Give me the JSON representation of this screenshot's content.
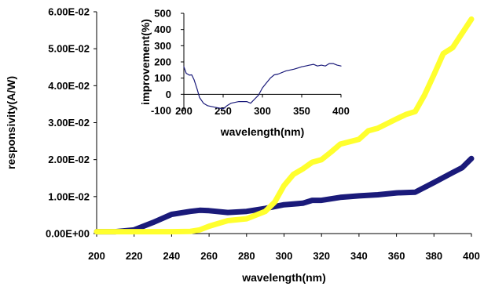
{
  "chart_data": [
    {
      "type": "line",
      "xlabel": "wavelength(nm)",
      "ylabel": "responsivity(A/W)",
      "xlim": [
        200,
        400
      ],
      "ylim": [
        0,
        0.06
      ],
      "x_ticks": [
        "200",
        "220",
        "240",
        "260",
        "280",
        "300",
        "320",
        "340",
        "360",
        "380",
        "400"
      ],
      "y_ticks": [
        "0.00E+00",
        "1.00E-02",
        "2.00E-02",
        "3.00E-02",
        "4.00E-02",
        "5.00E-02",
        "6.00E-02"
      ],
      "grid": false,
      "legend": "none",
      "series": [
        {
          "color": "#1a1a7a",
          "points": [
            [
              200,
              0.0005
            ],
            [
              210,
              0.0005
            ],
            [
              220,
              0.001
            ],
            [
              230,
              0.003
            ],
            [
              240,
              0.0052
            ],
            [
              250,
              0.006
            ],
            [
              255,
              0.0063
            ],
            [
              260,
              0.0062
            ],
            [
              270,
              0.0057
            ],
            [
              280,
              0.006
            ],
            [
              290,
              0.0068
            ],
            [
              300,
              0.0078
            ],
            [
              310,
              0.0082
            ],
            [
              315,
              0.009
            ],
            [
              320,
              0.009
            ],
            [
              330,
              0.0098
            ],
            [
              340,
              0.0102
            ],
            [
              350,
              0.0105
            ],
            [
              360,
              0.011
            ],
            [
              370,
              0.0112
            ],
            [
              380,
              0.0138
            ],
            [
              390,
              0.0165
            ],
            [
              395,
              0.0178
            ],
            [
              400,
              0.0203
            ]
          ]
        },
        {
          "color": "#ffff2e",
          "points": [
            [
              200,
              0.0005
            ],
            [
              220,
              0.0005
            ],
            [
              240,
              0.0005
            ],
            [
              250,
              0.0006
            ],
            [
              255,
              0.001
            ],
            [
              260,
              0.002
            ],
            [
              270,
              0.0035
            ],
            [
              280,
              0.004
            ],
            [
              290,
              0.006
            ],
            [
              295,
              0.0085
            ],
            [
              300,
              0.013
            ],
            [
              305,
              0.016
            ],
            [
              310,
              0.0175
            ],
            [
              315,
              0.0193
            ],
            [
              320,
              0.02
            ],
            [
              325,
              0.022
            ],
            [
              330,
              0.0242
            ],
            [
              340,
              0.0255
            ],
            [
              345,
              0.0278
            ],
            [
              350,
              0.0285
            ],
            [
              360,
              0.031
            ],
            [
              365,
              0.0322
            ],
            [
              370,
              0.033
            ],
            [
              375,
              0.0375
            ],
            [
              380,
              0.043
            ],
            [
              385,
              0.0487
            ],
            [
              390,
              0.0503
            ],
            [
              400,
              0.058
            ]
          ]
        }
      ]
    },
    {
      "type": "line",
      "xlabel": "wavelength(nm)",
      "ylabel": "improvement(%)",
      "xlim": [
        200,
        400
      ],
      "ylim": [
        -100,
        500
      ],
      "x_ticks": [
        "200",
        "250",
        "300",
        "350",
        "400"
      ],
      "y_ticks": [
        "-100",
        "0",
        "100",
        "200",
        "300",
        "400",
        "500"
      ],
      "grid": false,
      "legend": "none",
      "series": [
        {
          "color": "#1a1a7a",
          "points": [
            [
              200,
              170
            ],
            [
              203,
              130
            ],
            [
              207,
              118
            ],
            [
              210,
              120
            ],
            [
              213,
              90
            ],
            [
              217,
              30
            ],
            [
              220,
              -20
            ],
            [
              225,
              -55
            ],
            [
              230,
              -70
            ],
            [
              240,
              -80
            ],
            [
              250,
              -90
            ],
            [
              255,
              -70
            ],
            [
              260,
              -55
            ],
            [
              270,
              -45
            ],
            [
              280,
              -45
            ],
            [
              285,
              -55
            ],
            [
              290,
              -30
            ],
            [
              295,
              -5
            ],
            [
              300,
              40
            ],
            [
              305,
              70
            ],
            [
              310,
              100
            ],
            [
              315,
              120
            ],
            [
              320,
              125
            ],
            [
              330,
              145
            ],
            [
              340,
              155
            ],
            [
              350,
              170
            ],
            [
              355,
              175
            ],
            [
              360,
              180
            ],
            [
              365,
              185
            ],
            [
              370,
              175
            ],
            [
              375,
              180
            ],
            [
              380,
              175
            ],
            [
              385,
              190
            ],
            [
              390,
              190
            ],
            [
              395,
              180
            ],
            [
              400,
              175
            ]
          ]
        }
      ]
    }
  ]
}
